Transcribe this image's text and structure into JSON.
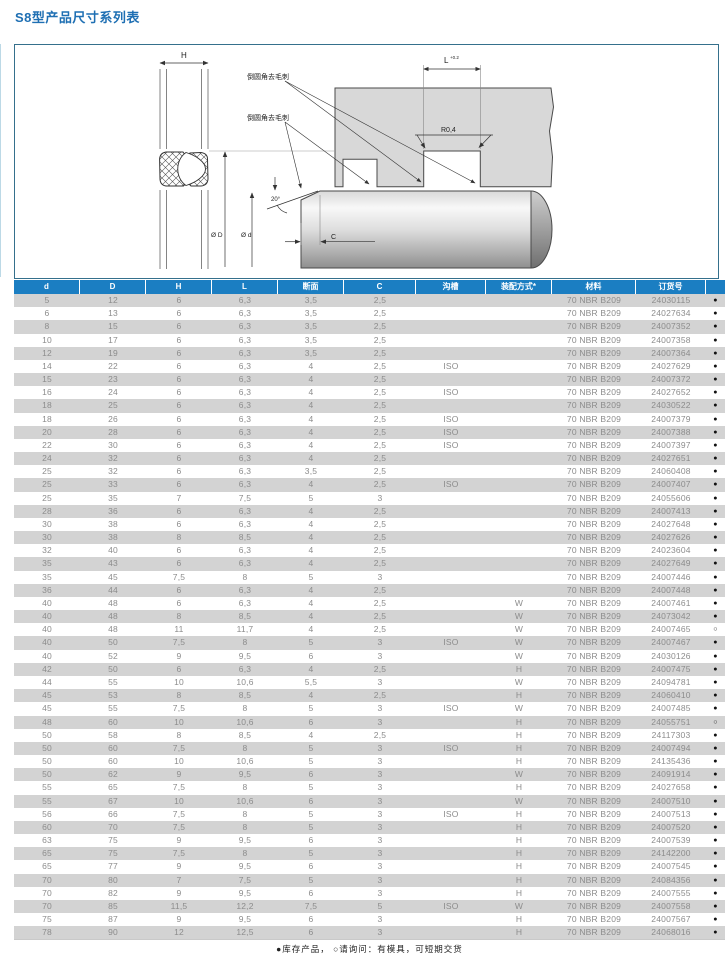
{
  "page": {
    "title": "S8型产品尺寸系列表",
    "footnote": "●库存产品， ○请询问：有模具，可短期交货"
  },
  "colors": {
    "title_blue": "#1e6fb3",
    "header_blue": "#1b7ec2",
    "row_gray": "#d3d3d3",
    "figure_border": "#35708c",
    "table_text_gray": "#8c8c8c"
  },
  "diagram": {
    "labels": {
      "h_dim": "H",
      "l_dim": "L",
      "l_tolerance": "+0.2",
      "radius": "R0,4",
      "deburr_top": "倒圆角去毛刺",
      "deburr_bottom": "倒圆角去毛刺",
      "angle": "20°",
      "dia_D": "Ø D",
      "dia_d": "Ø d",
      "c_dim": "C"
    }
  },
  "table": {
    "headers": [
      "d",
      "D",
      "H",
      "L",
      "断面",
      "C",
      "沟槽",
      "装配方式*",
      "材料",
      "订货号",
      ""
    ],
    "rows": [
      [
        "5",
        "12",
        "6",
        "6,3",
        "3,5",
        "2,5",
        "",
        "",
        "70 NBR B209",
        "24030115",
        "●"
      ],
      [
        "6",
        "13",
        "6",
        "6,3",
        "3,5",
        "2,5",
        "",
        "",
        "70 NBR B209",
        "24027634",
        "●"
      ],
      [
        "8",
        "15",
        "6",
        "6,3",
        "3,5",
        "2,5",
        "",
        "",
        "70 NBR B209",
        "24007352",
        "●"
      ],
      [
        "10",
        "17",
        "6",
        "6,3",
        "3,5",
        "2,5",
        "",
        "",
        "70 NBR B209",
        "24007358",
        "●"
      ],
      [
        "12",
        "19",
        "6",
        "6,3",
        "3,5",
        "2,5",
        "",
        "",
        "70 NBR B209",
        "24007364",
        "●"
      ],
      [
        "14",
        "22",
        "6",
        "6,3",
        "4",
        "2,5",
        "ISO",
        "",
        "70 NBR B209",
        "24027629",
        "●"
      ],
      [
        "15",
        "23",
        "6",
        "6,3",
        "4",
        "2,5",
        "",
        "",
        "70 NBR B209",
        "24007372",
        "●"
      ],
      [
        "16",
        "24",
        "6",
        "6,3",
        "4",
        "2,5",
        "ISO",
        "",
        "70 NBR B209",
        "24027652",
        "●"
      ],
      [
        "18",
        "25",
        "6",
        "6,3",
        "4",
        "2,5",
        "",
        "",
        "70 NBR B209",
        "24030522",
        "●"
      ],
      [
        "18",
        "26",
        "6",
        "6,3",
        "4",
        "2,5",
        "ISO",
        "",
        "70 NBR B209",
        "24007379",
        "●"
      ],
      [
        "20",
        "28",
        "6",
        "6,3",
        "4",
        "2,5",
        "ISO",
        "",
        "70 NBR B209",
        "24007388",
        "●"
      ],
      [
        "22",
        "30",
        "6",
        "6,3",
        "4",
        "2,5",
        "ISO",
        "",
        "70 NBR B209",
        "24007397",
        "●"
      ],
      [
        "24",
        "32",
        "6",
        "6,3",
        "4",
        "2,5",
        "",
        "",
        "70 NBR B209",
        "24027651",
        "●"
      ],
      [
        "25",
        "32",
        "6",
        "6,3",
        "3,5",
        "2,5",
        "",
        "",
        "70 NBR B209",
        "24060408",
        "●"
      ],
      [
        "25",
        "33",
        "6",
        "6,3",
        "4",
        "2,5",
        "ISO",
        "",
        "70 NBR B209",
        "24007407",
        "●"
      ],
      [
        "25",
        "35",
        "7",
        "7,5",
        "5",
        "3",
        "",
        "",
        "70 NBR B209",
        "24055606",
        "●"
      ],
      [
        "28",
        "36",
        "6",
        "6,3",
        "4",
        "2,5",
        "",
        "",
        "70 NBR B209",
        "24007413",
        "●"
      ],
      [
        "30",
        "38",
        "6",
        "6,3",
        "4",
        "2,5",
        "",
        "",
        "70 NBR B209",
        "24027648",
        "●"
      ],
      [
        "30",
        "38",
        "8",
        "8,5",
        "4",
        "2,5",
        "",
        "",
        "70 NBR B209",
        "24027626",
        "●"
      ],
      [
        "32",
        "40",
        "6",
        "6,3",
        "4",
        "2,5",
        "",
        "",
        "70 NBR B209",
        "24023604",
        "●"
      ],
      [
        "35",
        "43",
        "6",
        "6,3",
        "4",
        "2,5",
        "",
        "",
        "70 NBR B209",
        "24027649",
        "●"
      ],
      [
        "35",
        "45",
        "7,5",
        "8",
        "5",
        "3",
        "",
        "",
        "70 NBR B209",
        "24007446",
        "●"
      ],
      [
        "36",
        "44",
        "6",
        "6,3",
        "4",
        "2,5",
        "",
        "",
        "70 NBR B209",
        "24007448",
        "●"
      ],
      [
        "40",
        "48",
        "6",
        "6,3",
        "4",
        "2,5",
        "",
        "W",
        "70 NBR B209",
        "24007461",
        "●"
      ],
      [
        "40",
        "48",
        "8",
        "8,5",
        "4",
        "2,5",
        "",
        "W",
        "70 NBR B209",
        "24073042",
        "●"
      ],
      [
        "40",
        "48",
        "11",
        "11,7",
        "4",
        "2,5",
        "",
        "W",
        "70 NBR B209",
        "24007465",
        "○"
      ],
      [
        "40",
        "50",
        "7,5",
        "8",
        "5",
        "3",
        "ISO",
        "W",
        "70 NBR B209",
        "24007467",
        "●"
      ],
      [
        "40",
        "52",
        "9",
        "9,5",
        "6",
        "3",
        "",
        "W",
        "70 NBR B209",
        "24030126",
        "●"
      ],
      [
        "42",
        "50",
        "6",
        "6,3",
        "4",
        "2,5",
        "",
        "H",
        "70 NBR B209",
        "24007475",
        "●"
      ],
      [
        "44",
        "55",
        "10",
        "10,6",
        "5,5",
        "3",
        "",
        "W",
        "70 NBR B209",
        "24094781",
        "●"
      ],
      [
        "45",
        "53",
        "8",
        "8,5",
        "4",
        "2,5",
        "",
        "H",
        "70 NBR B209",
        "24060410",
        "●"
      ],
      [
        "45",
        "55",
        "7,5",
        "8",
        "5",
        "3",
        "ISO",
        "W",
        "70 NBR B209",
        "24007485",
        "●"
      ],
      [
        "48",
        "60",
        "10",
        "10,6",
        "6",
        "3",
        "",
        "H",
        "70 NBR B209",
        "24055751",
        "○"
      ],
      [
        "50",
        "58",
        "8",
        "8,5",
        "4",
        "2,5",
        "",
        "H",
        "70 NBR B209",
        "24117303",
        "●"
      ],
      [
        "50",
        "60",
        "7,5",
        "8",
        "5",
        "3",
        "ISO",
        "H",
        "70 NBR B209",
        "24007494",
        "●"
      ],
      [
        "50",
        "60",
        "10",
        "10,6",
        "5",
        "3",
        "",
        "H",
        "70 NBR B209",
        "24135436",
        "●"
      ],
      [
        "50",
        "62",
        "9",
        "9,5",
        "6",
        "3",
        "",
        "W",
        "70 NBR B209",
        "24091914",
        "●"
      ],
      [
        "55",
        "65",
        "7,5",
        "8",
        "5",
        "3",
        "",
        "H",
        "70 NBR B209",
        "24027658",
        "●"
      ],
      [
        "55",
        "67",
        "10",
        "10,6",
        "6",
        "3",
        "",
        "W",
        "70 NBR B209",
        "24007510",
        "●"
      ],
      [
        "56",
        "66",
        "7,5",
        "8",
        "5",
        "3",
        "ISO",
        "H",
        "70 NBR B209",
        "24007513",
        "●"
      ],
      [
        "60",
        "70",
        "7,5",
        "8",
        "5",
        "3",
        "",
        "H",
        "70 NBR B209",
        "24007520",
        "●"
      ],
      [
        "63",
        "75",
        "9",
        "9,5",
        "6",
        "3",
        "",
        "H",
        "70 NBR B209",
        "24007539",
        "●"
      ],
      [
        "65",
        "75",
        "7,5",
        "8",
        "5",
        "3",
        "",
        "H",
        "70 NBR B209",
        "24142200",
        "●"
      ],
      [
        "65",
        "77",
        "9",
        "9,5",
        "6",
        "3",
        "",
        "H",
        "70 NBR B209",
        "24007545",
        "●"
      ],
      [
        "70",
        "80",
        "7",
        "7,5",
        "5",
        "3",
        "",
        "H",
        "70 NBR B209",
        "24084356",
        "●"
      ],
      [
        "70",
        "82",
        "9",
        "9,5",
        "6",
        "3",
        "",
        "H",
        "70 NBR B209",
        "24007555",
        "●"
      ],
      [
        "70",
        "85",
        "11,5",
        "12,2",
        "7,5",
        "5",
        "ISO",
        "W",
        "70 NBR B209",
        "24007558",
        "●"
      ],
      [
        "75",
        "87",
        "9",
        "9,5",
        "6",
        "3",
        "",
        "H",
        "70 NBR B209",
        "24007567",
        "●"
      ],
      [
        "78",
        "90",
        "12",
        "12,5",
        "6",
        "3",
        "",
        "H",
        "70 NBR B209",
        "24068016",
        "●"
      ]
    ]
  }
}
